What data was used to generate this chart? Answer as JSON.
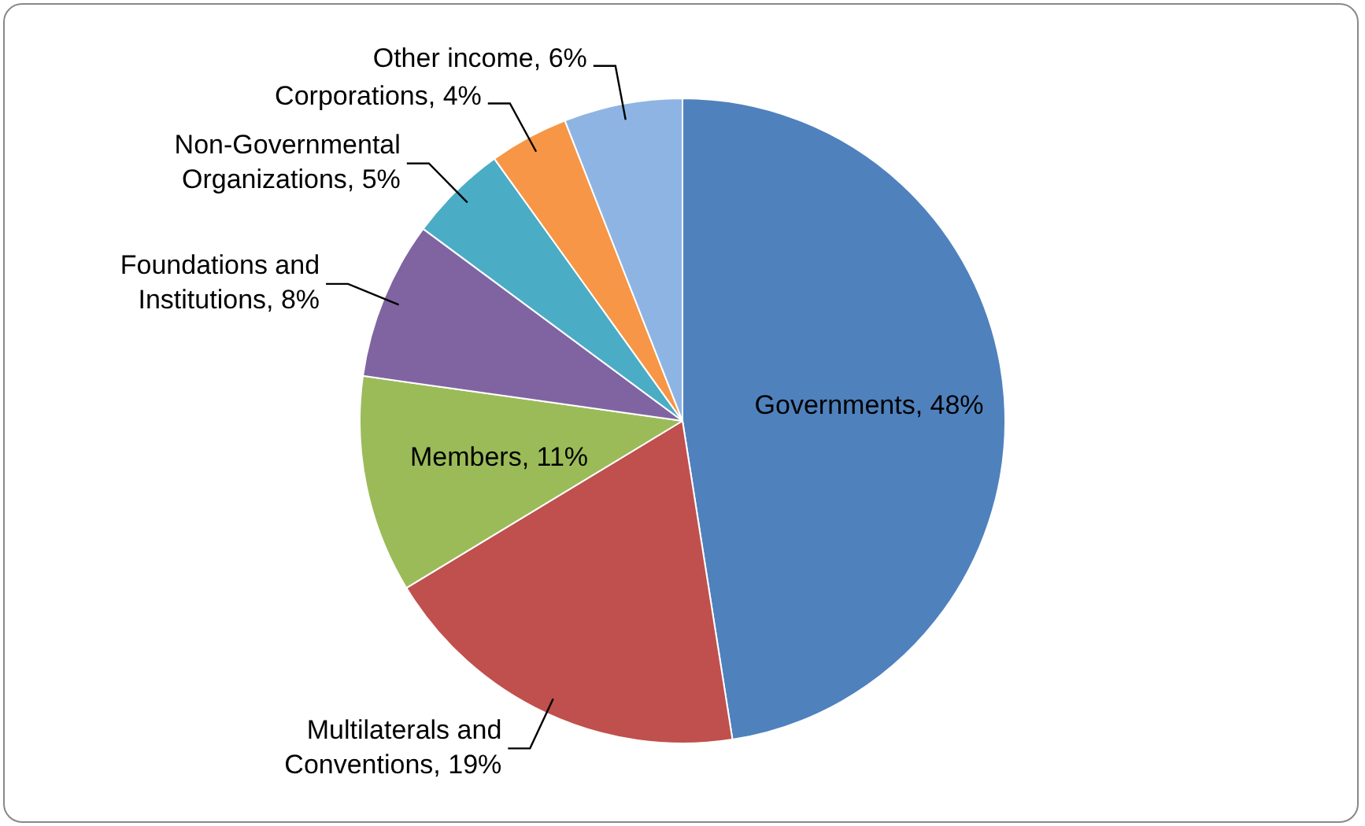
{
  "chart_data": {
    "type": "pie",
    "categories": [
      "Governments",
      "Multilaterals and Conventions",
      "Members",
      "Foundations and Institutions",
      "Non-Governmental Organizations",
      "Corporations",
      "Other income"
    ],
    "data_labels": true,
    "values": [
      48,
      19,
      11,
      8,
      5,
      4,
      6
    ],
    "value_labels": [
      "48%",
      "19%",
      "11%",
      "8%",
      "5%",
      "4%",
      "6%"
    ],
    "colors": [
      "#4f81bd",
      "#c0504d",
      "#9bbb59",
      "#8064a2",
      "#4bacc6",
      "#f79646",
      "#8eb4e3"
    ],
    "legend": false
  }
}
